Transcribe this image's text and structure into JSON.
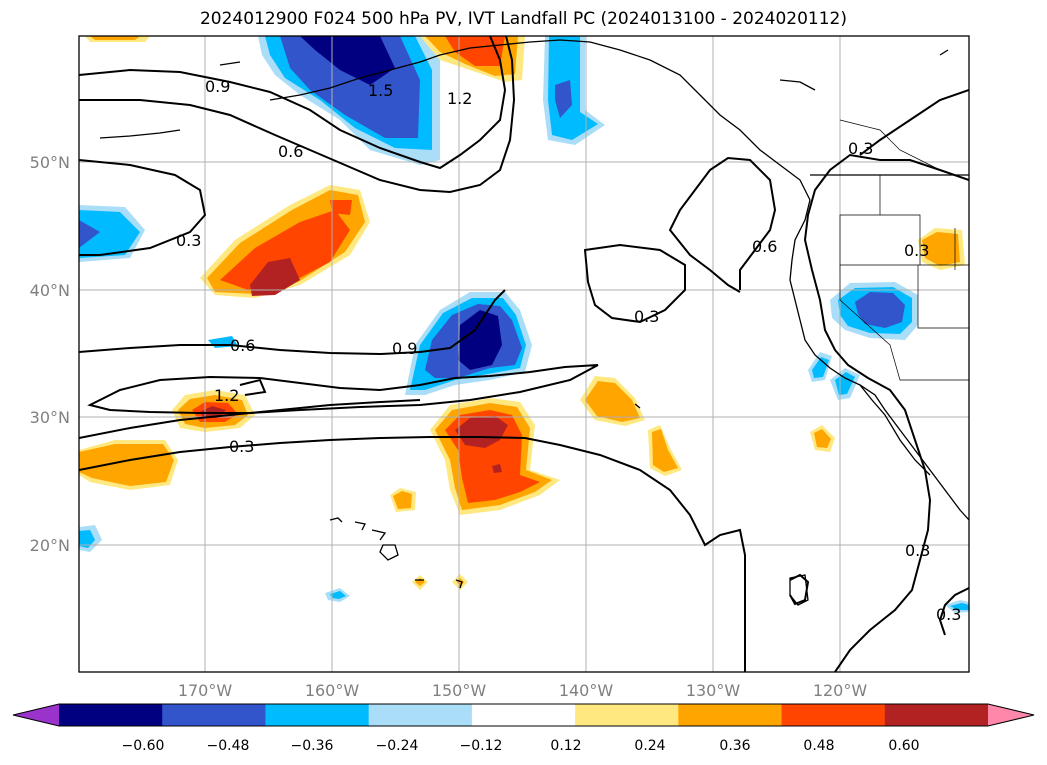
{
  "title": "2024012900 F024 500 hPa PV, IVT Landfall PC (2024013100 - 2024020112)",
  "lat_ticks": [
    "50°N",
    "40°N",
    "30°N",
    "20°N"
  ],
  "lon_ticks": [
    "170°W",
    "160°W",
    "150°W",
    "140°W",
    "130°W",
    "120°W"
  ],
  "contour_labels": [
    "0.9",
    "1.5",
    "1.2",
    "0.6",
    "0.3",
    "0.3",
    "0.6",
    "0.3",
    "0.3",
    "0.6",
    "0.9",
    "1.2",
    "0.3",
    "0.3",
    "0.3"
  ],
  "colorbar": {
    "ticks": [
      "−0.60",
      "−0.48",
      "−0.36",
      "−0.24",
      "−0.12",
      "0.12",
      "0.24",
      "0.36",
      "0.48",
      "0.60"
    ],
    "colors": [
      "#9933cc",
      "#000080",
      "#3355cc",
      "#00bbff",
      "#aaddf8",
      "#ffffff",
      "#ffe880",
      "#ffa500",
      "#ff4500",
      "#b22222",
      "#ff88aa"
    ]
  },
  "colors": {
    "coast": "#000000",
    "grid": "#b0b0b0"
  }
}
